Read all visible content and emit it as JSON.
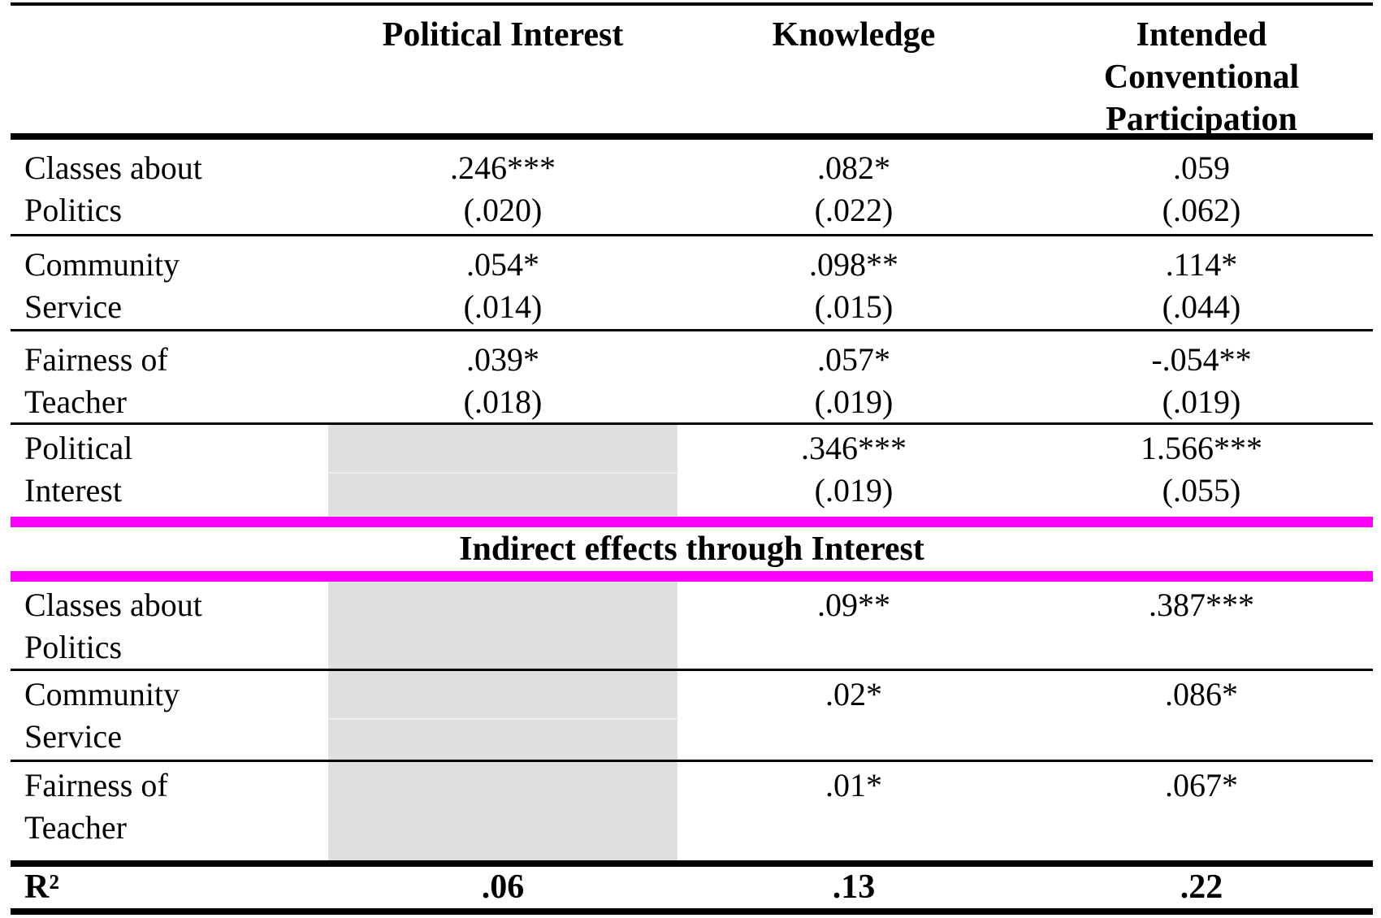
{
  "header": {
    "col1": "",
    "col2": "Political Interest",
    "col3": "Knowledge",
    "col4_lines": [
      "Intended",
      "Conventional",
      "Participation"
    ]
  },
  "direct_rows": [
    {
      "label_lines": [
        "Classes about",
        "Politics"
      ],
      "cells": [
        {
          "b": ".246***",
          "se": "(.020)"
        },
        {
          "b": ".082*",
          "se": "(.022)"
        },
        {
          "b": ".059",
          "se": "(.062)"
        }
      ]
    },
    {
      "label_lines": [
        "Community",
        "Service"
      ],
      "cells": [
        {
          "b": ".054*",
          "se": "(.014)"
        },
        {
          "b": ".098**",
          "se": "(.015)"
        },
        {
          "b": ".114*",
          "se": "(.044)"
        }
      ]
    },
    {
      "label_lines": [
        "Fairness of",
        "Teacher"
      ],
      "cells": [
        {
          "b": ".039*",
          "se": "(.018)"
        },
        {
          "b": ".057*",
          "se": "(.019)"
        },
        {
          "b": "-.054**",
          "se": "(.019)"
        }
      ]
    },
    {
      "label_lines": [
        "Political",
        "Interest"
      ],
      "cells": [
        {
          "b": "",
          "se": "",
          "highlighted": true
        },
        {
          "b": ".346***",
          "se": "(.019)"
        },
        {
          "b": "1.566***",
          "se": "(.055)"
        }
      ]
    }
  ],
  "section_header": "Indirect effects through Interest",
  "indirect_rows": [
    {
      "label_lines": [
        "Classes about",
        "Politics"
      ],
      "knowledge": ".09**",
      "participation": ".387***"
    },
    {
      "label_lines": [
        "Community",
        "Service"
      ],
      "knowledge": ".02*",
      "participation": ".086*"
    },
    {
      "label_lines": [
        "Fairness of",
        "Teacher"
      ],
      "knowledge": ".01*",
      "participation": ".067*"
    }
  ],
  "r2": {
    "label": "R²",
    "values": [
      ".06",
      ".13",
      ".22"
    ]
  },
  "colors": {
    "highlight_gray": "#dfdfdf",
    "magenta_divider": "#fa00fa",
    "rule_black": "#000000",
    "background": "#ffffff"
  },
  "chart_data": {
    "type": "table",
    "title": "Path model: direct and indirect effects (standard errors in parentheses)",
    "columns": [
      "Political Interest",
      "Knowledge",
      "Intended Conventional Participation"
    ],
    "direct_effects": {
      "Classes about Politics": {
        "Political Interest": ".246*** (.020)",
        "Knowledge": ".082* (.022)",
        "Intended Conventional Participation": ".059 (.062)"
      },
      "Community Service": {
        "Political Interest": ".054* (.014)",
        "Knowledge": ".098** (.015)",
        "Intended Conventional Participation": ".114* (.044)"
      },
      "Fairness of Teacher": {
        "Political Interest": ".039* (.018)",
        "Knowledge": ".057* (.019)",
        "Intended Conventional Participation": "-.054** (.019)"
      },
      "Political Interest": {
        "Political Interest": null,
        "Knowledge": ".346*** (.019)",
        "Intended Conventional Participation": "1.566*** (.055)"
      }
    },
    "indirect_effects_through_interest": {
      "Classes about Politics": {
        "Knowledge": ".09**",
        "Intended Conventional Participation": ".387***"
      },
      "Community Service": {
        "Knowledge": ".02*",
        "Intended Conventional Participation": ".086*"
      },
      "Fairness of Teacher": {
        "Knowledge": ".01*",
        "Intended Conventional Participation": ".067*"
      }
    },
    "r_squared": {
      "Political Interest": ".06",
      "Knowledge": ".13",
      "Intended Conventional Participation": ".22"
    }
  }
}
